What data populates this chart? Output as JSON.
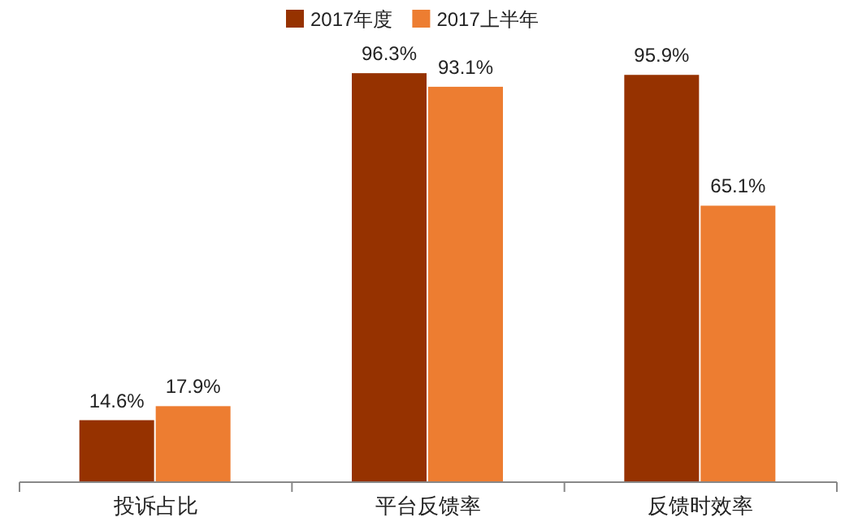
{
  "chart_data": {
    "type": "bar",
    "categories": [
      "投诉占比",
      "平台反馈率",
      "反馈时效率"
    ],
    "series": [
      {
        "name": "2017年度",
        "color": "#963200",
        "values": [
          14.6,
          96.3,
          95.9
        ],
        "value_labels": [
          "14.6%",
          "96.3%",
          "95.9%"
        ]
      },
      {
        "name": "2017上半年",
        "color": "#ed7d31",
        "values": [
          17.9,
          93.1,
          65.1
        ],
        "value_labels": [
          "17.9%",
          "93.1%",
          "65.1%"
        ]
      }
    ],
    "legend": "top",
    "grid": false
  }
}
